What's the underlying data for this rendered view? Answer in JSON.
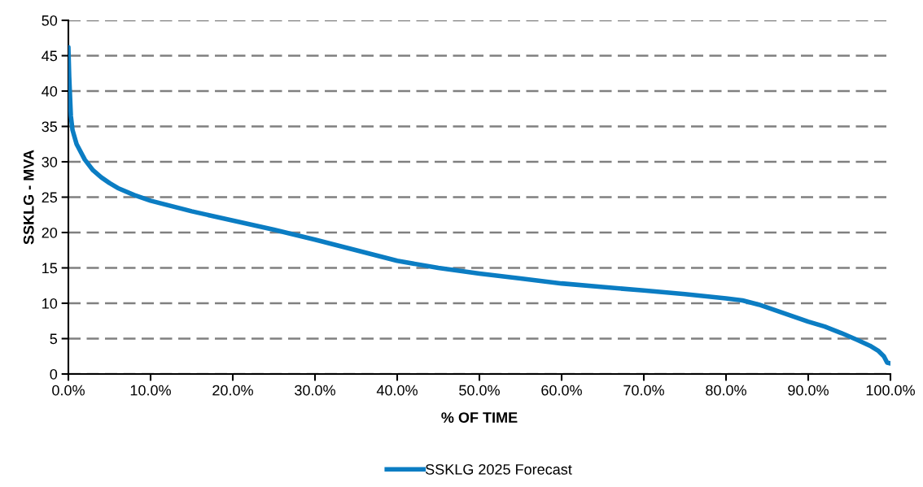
{
  "chart_data": {
    "type": "line",
    "xlabel": "% OF TIME",
    "ylabel": "SSKLG - MVA",
    "x": [
      0,
      0.1,
      0.3,
      0.5,
      1,
      2,
      3,
      4,
      5,
      6,
      8,
      10,
      15,
      20,
      25,
      30,
      35,
      40,
      45,
      50,
      55,
      60,
      65,
      70,
      75,
      80,
      82,
      84,
      86,
      88,
      90,
      92,
      94,
      96,
      97.5,
      98.5,
      99.2,
      99.6,
      100
    ],
    "series": [
      {
        "name": "SSKLG 2025 Forecast",
        "color": "#0b7dc3",
        "values": [
          46.2,
          42,
          36.5,
          34.5,
          32.5,
          30.3,
          28.8,
          27.8,
          27,
          26.3,
          25.3,
          24.5,
          23,
          21.7,
          20.4,
          19,
          17.5,
          16,
          15,
          14.2,
          13.5,
          12.8,
          12.3,
          11.8,
          11.3,
          10.7,
          10.4,
          9.8,
          9,
          8.2,
          7.4,
          6.7,
          5.8,
          4.8,
          4,
          3.3,
          2.5,
          1.6,
          1.5
        ]
      }
    ],
    "xlim": [
      0,
      100
    ],
    "ylim": [
      0,
      50
    ],
    "xticks": [
      {
        "value": 0,
        "label": "0.0%"
      },
      {
        "value": 10,
        "label": "10.0%"
      },
      {
        "value": 20,
        "label": "20.0%"
      },
      {
        "value": 30,
        "label": "30.0%"
      },
      {
        "value": 40,
        "label": "40.0%"
      },
      {
        "value": 50,
        "label": "50.0%"
      },
      {
        "value": 60,
        "label": "60.0%"
      },
      {
        "value": 70,
        "label": "70.0%"
      },
      {
        "value": 80,
        "label": "80.0%"
      },
      {
        "value": 90,
        "label": "90.0%"
      },
      {
        "value": 100,
        "label": "100.0%"
      }
    ],
    "yticks": [
      0,
      5,
      10,
      15,
      20,
      25,
      30,
      35,
      40,
      45,
      50
    ],
    "grid": "y",
    "legend": "bottom",
    "marker": "none",
    "line_style": "solid"
  }
}
